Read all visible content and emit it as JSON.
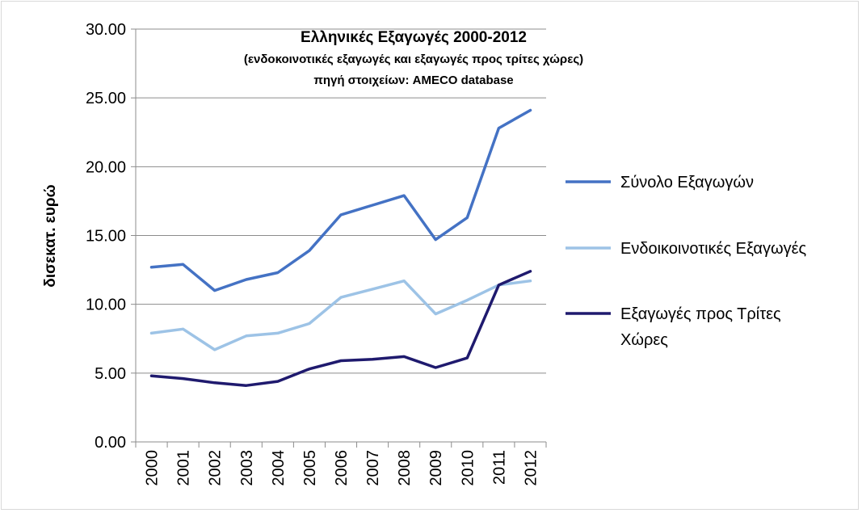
{
  "chart_data": {
    "type": "line",
    "title": "Ελληνικές Εξαγωγές 2000-2012",
    "subtitle": "(ενδοκοινοτικές εξαγωγές και εξαγωγές προς τρίτες χώρες)",
    "source": "πηγή στοιχείων: AMECO database",
    "xlabel": "",
    "ylabel": "δισεκατ.   ευρώ",
    "ylim": [
      0,
      30
    ],
    "yticks": [
      "0.00",
      "5.00",
      "10.00",
      "15.00",
      "20.00",
      "25.00",
      "30.00"
    ],
    "categories": [
      "2000",
      "2001",
      "2002",
      "2003",
      "2004",
      "2005",
      "2006",
      "2007",
      "2008",
      "2009",
      "2010",
      "2011",
      "2012"
    ],
    "grid": true,
    "legend_position": "right",
    "series": [
      {
        "name": "Σύνολο Εξαγωγών",
        "color": "#4472c4",
        "values": [
          12.7,
          12.9,
          11.0,
          11.8,
          12.3,
          13.9,
          16.5,
          17.2,
          17.9,
          14.7,
          16.3,
          22.8,
          24.1
        ]
      },
      {
        "name": "Ενδοικοινοτικές Εξαγωγές",
        "color": "#9dc3e6",
        "values": [
          7.9,
          8.2,
          6.7,
          7.7,
          7.9,
          8.6,
          10.5,
          11.1,
          11.7,
          9.3,
          10.3,
          11.4,
          11.7
        ]
      },
      {
        "name": "Εξαγωγές προς Τρίτες Χώρες",
        "name_lines": [
          "Εξαγωγές προς Τρίτες",
          "Χώρες"
        ],
        "color": "#1f1a6e",
        "values": [
          4.8,
          4.6,
          4.3,
          4.1,
          4.4,
          5.3,
          5.9,
          6.0,
          6.2,
          5.4,
          6.1,
          11.4,
          12.4
        ]
      }
    ]
  }
}
